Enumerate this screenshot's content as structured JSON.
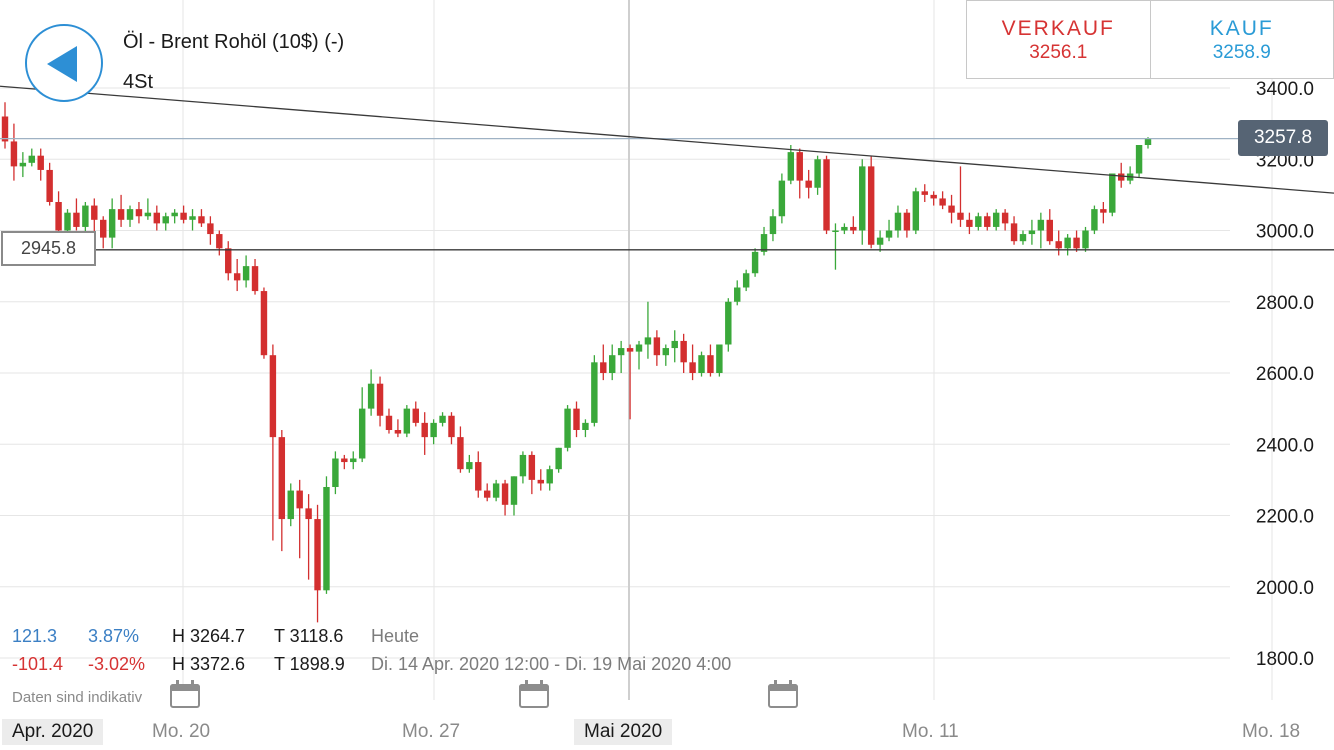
{
  "header": {
    "instrument": "Öl - Brent Rohöl (10$) (-)",
    "timeframe": "4St"
  },
  "trade": {
    "sell_label": "VERKAUF",
    "sell_value": "3256.1",
    "buy_label": "KAUF",
    "buy_value": "3258.9"
  },
  "price_label": "3257.8",
  "level_label": "2945.8",
  "stats": {
    "row1": {
      "change": "121.3",
      "change_pct": "3.87%",
      "high": "H 3264.7",
      "low": "T 3118.6",
      "period": "Heute"
    },
    "row2": {
      "change": "-101.4",
      "change_pct": "-3.02%",
      "high": "H 3372.6",
      "low": "T 1898.9",
      "period": "Di. 14 Apr. 2020 12:00 - Di. 19 Mai 2020 4:00"
    }
  },
  "disclaimer": "Daten sind indikativ",
  "icons": [
    "back-arrow-icon",
    "calendar-icon"
  ],
  "colors": {
    "up": "#3aa83a",
    "down": "#d32f2f",
    "accent": "#2d8fd5",
    "sell": "#d63333",
    "buy": "#2a9bd6",
    "price_tag": "#566474"
  },
  "chart_data": {
    "type": "candlestick",
    "y_ticks": [
      "3400.0",
      "3200.0",
      "3000.0",
      "2800.0",
      "2600.0",
      "2400.0",
      "2200.0",
      "2000.0",
      "1800.0"
    ],
    "y_tick_values": [
      3400,
      3200,
      3000,
      2800,
      2600,
      2400,
      2200,
      2000,
      1800
    ],
    "ylim": [
      1770,
      3455
    ],
    "x_labels": [
      {
        "label": "Apr. 2020",
        "major": true
      },
      {
        "label": "Mo. 20",
        "major": false
      },
      {
        "label": "Mo. 27",
        "major": false
      },
      {
        "label": "Mai 2020",
        "major": true
      },
      {
        "label": "Mo. 11",
        "major": false
      },
      {
        "label": "Mo. 18",
        "major": false
      }
    ],
    "current_price": 3257.8,
    "horizontal_level": 2945.8,
    "trendline": {
      "from": 3405,
      "to": 3105
    },
    "candles": [
      [
        3320,
        3360,
        3230,
        3250
      ],
      [
        3250,
        3300,
        3140,
        3180
      ],
      [
        3180,
        3220,
        3150,
        3190
      ],
      [
        3190,
        3230,
        3180,
        3210
      ],
      [
        3210,
        3230,
        3140,
        3170
      ],
      [
        3170,
        3190,
        3070,
        3080
      ],
      [
        3080,
        3110,
        2970,
        3000
      ],
      [
        3000,
        3060,
        2990,
        3050
      ],
      [
        3050,
        3090,
        3000,
        3010
      ],
      [
        3010,
        3080,
        2990,
        3070
      ],
      [
        3070,
        3090,
        2980,
        3030
      ],
      [
        3030,
        3040,
        2950,
        2980
      ],
      [
        2980,
        3090,
        2950,
        3060
      ],
      [
        3060,
        3100,
        3010,
        3030
      ],
      [
        3030,
        3070,
        3010,
        3060
      ],
      [
        3060,
        3080,
        3020,
        3040
      ],
      [
        3040,
        3090,
        3030,
        3050
      ],
      [
        3050,
        3070,
        3000,
        3020
      ],
      [
        3020,
        3050,
        3000,
        3040
      ],
      [
        3040,
        3060,
        3020,
        3050
      ],
      [
        3050,
        3070,
        3020,
        3030
      ],
      [
        3030,
        3060,
        3000,
        3040
      ],
      [
        3040,
        3060,
        3010,
        3020
      ],
      [
        3020,
        3040,
        2960,
        2990
      ],
      [
        2990,
        3000,
        2930,
        2950
      ],
      [
        2950,
        2970,
        2860,
        2880
      ],
      [
        2880,
        2920,
        2830,
        2860
      ],
      [
        2860,
        2930,
        2840,
        2900
      ],
      [
        2900,
        2920,
        2820,
        2830
      ],
      [
        2830,
        2840,
        2640,
        2650
      ],
      [
        2650,
        2680,
        2130,
        2420
      ],
      [
        2420,
        2440,
        2100,
        2190
      ],
      [
        2190,
        2290,
        2170,
        2270
      ],
      [
        2270,
        2300,
        2080,
        2220
      ],
      [
        2220,
        2260,
        2020,
        2190
      ],
      [
        2190,
        2230,
        1900,
        1990
      ],
      [
        1990,
        2310,
        1980,
        2280
      ],
      [
        2280,
        2380,
        2260,
        2360
      ],
      [
        2360,
        2370,
        2330,
        2350
      ],
      [
        2350,
        2380,
        2330,
        2360
      ],
      [
        2360,
        2560,
        2350,
        2500
      ],
      [
        2500,
        2610,
        2480,
        2570
      ],
      [
        2570,
        2590,
        2450,
        2480
      ],
      [
        2480,
        2500,
        2430,
        2440
      ],
      [
        2440,
        2470,
        2420,
        2430
      ],
      [
        2430,
        2510,
        2420,
        2500
      ],
      [
        2500,
        2520,
        2450,
        2460
      ],
      [
        2460,
        2490,
        2370,
        2420
      ],
      [
        2420,
        2470,
        2400,
        2460
      ],
      [
        2460,
        2490,
        2450,
        2480
      ],
      [
        2480,
        2490,
        2400,
        2420
      ],
      [
        2420,
        2450,
        2320,
        2330
      ],
      [
        2330,
        2370,
        2320,
        2350
      ],
      [
        2350,
        2380,
        2250,
        2270
      ],
      [
        2270,
        2290,
        2240,
        2250
      ],
      [
        2250,
        2300,
        2240,
        2290
      ],
      [
        2290,
        2300,
        2200,
        2230
      ],
      [
        2230,
        2310,
        2200,
        2310
      ],
      [
        2310,
        2380,
        2290,
        2370
      ],
      [
        2370,
        2380,
        2260,
        2300
      ],
      [
        2300,
        2330,
        2270,
        2290
      ],
      [
        2290,
        2340,
        2270,
        2330
      ],
      [
        2330,
        2390,
        2320,
        2390
      ],
      [
        2390,
        2510,
        2380,
        2500
      ],
      [
        2500,
        2520,
        2420,
        2440
      ],
      [
        2440,
        2470,
        2420,
        2460
      ],
      [
        2460,
        2650,
        2450,
        2630
      ],
      [
        2630,
        2680,
        2580,
        2600
      ],
      [
        2600,
        2680,
        2580,
        2650
      ],
      [
        2650,
        2690,
        2600,
        2670
      ],
      [
        2670,
        2680,
        2470,
        2660
      ],
      [
        2660,
        2690,
        2610,
        2680
      ],
      [
        2680,
        2800,
        2640,
        2700
      ],
      [
        2700,
        2720,
        2620,
        2650
      ],
      [
        2650,
        2680,
        2620,
        2670
      ],
      [
        2670,
        2720,
        2630,
        2690
      ],
      [
        2690,
        2710,
        2600,
        2630
      ],
      [
        2630,
        2680,
        2580,
        2600
      ],
      [
        2600,
        2660,
        2590,
        2650
      ],
      [
        2650,
        2680,
        2590,
        2600
      ],
      [
        2600,
        2680,
        2590,
        2680
      ],
      [
        2680,
        2810,
        2660,
        2800
      ],
      [
        2800,
        2860,
        2790,
        2840
      ],
      [
        2840,
        2890,
        2830,
        2880
      ],
      [
        2880,
        2950,
        2870,
        2940
      ],
      [
        2940,
        3010,
        2930,
        2990
      ],
      [
        2990,
        3060,
        2970,
        3040
      ],
      [
        3040,
        3160,
        3020,
        3140
      ],
      [
        3140,
        3240,
        3130,
        3220
      ],
      [
        3220,
        3230,
        3090,
        3140
      ],
      [
        3140,
        3170,
        3090,
        3120
      ],
      [
        3120,
        3210,
        3100,
        3200
      ],
      [
        3200,
        3210,
        2990,
        3000
      ],
      [
        3000,
        3020,
        2890,
        3000
      ],
      [
        3000,
        3020,
        2990,
        3010
      ],
      [
        3010,
        3040,
        2990,
        3000
      ],
      [
        3000,
        3200,
        2960,
        3180
      ],
      [
        3180,
        3210,
        2950,
        2960
      ],
      [
        2960,
        3000,
        2940,
        2980
      ],
      [
        2980,
        3030,
        2970,
        3000
      ],
      [
        3000,
        3070,
        2980,
        3050
      ],
      [
        3050,
        3060,
        2980,
        3000
      ],
      [
        3000,
        3120,
        2990,
        3110
      ],
      [
        3110,
        3130,
        3080,
        3100
      ],
      [
        3100,
        3110,
        3070,
        3090
      ],
      [
        3090,
        3110,
        3060,
        3070
      ],
      [
        3070,
        3100,
        3020,
        3050
      ],
      [
        3050,
        3180,
        3010,
        3030
      ],
      [
        3030,
        3050,
        2990,
        3010
      ],
      [
        3010,
        3050,
        3000,
        3040
      ],
      [
        3040,
        3050,
        3000,
        3010
      ],
      [
        3010,
        3060,
        3000,
        3050
      ],
      [
        3050,
        3060,
        3000,
        3020
      ],
      [
        3020,
        3040,
        2960,
        2970
      ],
      [
        2970,
        3000,
        2960,
        2990
      ],
      [
        2990,
        3030,
        2960,
        3000
      ],
      [
        3000,
        3050,
        2950,
        3030
      ],
      [
        3030,
        3060,
        2960,
        2970
      ],
      [
        2970,
        3000,
        2930,
        2950
      ],
      [
        2950,
        2990,
        2930,
        2980
      ],
      [
        2980,
        3000,
        2940,
        2950
      ],
      [
        2950,
        3010,
        2940,
        3000
      ],
      [
        3000,
        3070,
        2990,
        3060
      ],
      [
        3060,
        3080,
        3020,
        3050
      ],
      [
        3050,
        3160,
        3040,
        3160
      ],
      [
        3160,
        3190,
        3120,
        3140
      ],
      [
        3140,
        3180,
        3130,
        3160
      ],
      [
        3160,
        3240,
        3150,
        3240
      ],
      [
        3240,
        3262,
        3230,
        3258
      ]
    ]
  }
}
